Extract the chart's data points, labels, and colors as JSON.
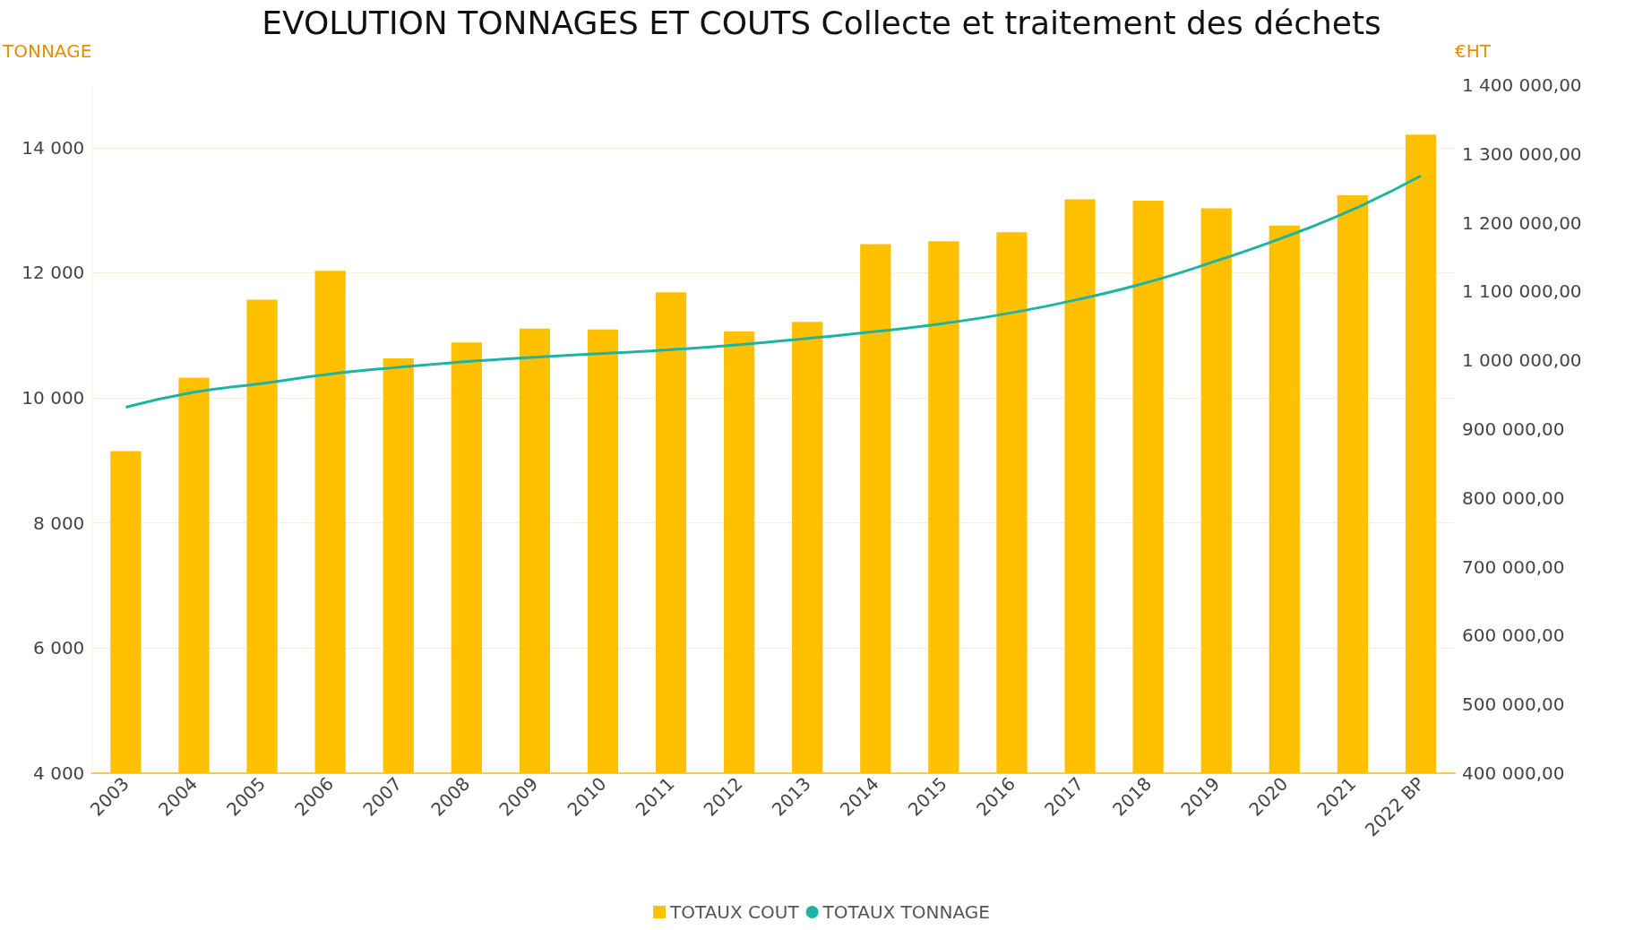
{
  "chart_data": {
    "type": "bar",
    "title": "EVOLUTION TONNAGES ET COUTS Collecte et traitement des déchets",
    "ylabel": "TONNAGE",
    "y2label": "€HT",
    "categories": [
      "2003",
      "2004",
      "2005",
      "2006",
      "2007",
      "2008",
      "2009",
      "2010",
      "2011",
      "2012",
      "2013",
      "2014",
      "2015",
      "2016",
      "2017",
      "2018",
      "2019",
      "2020",
      "2021",
      "2022 BP"
    ],
    "series": [
      {
        "name": "TOTAUX COUT",
        "axis": "y2",
        "color": "#ffc000",
        "values": [
          868000,
          975000,
          1088000,
          1130000,
          1003000,
          1026000,
          1046000,
          1045000,
          1099000,
          1042000,
          1056000,
          1169000,
          1173000,
          1186000,
          1234000,
          1232000,
          1221000,
          1196000,
          1240000,
          1328000
        ]
      },
      {
        "name": "TOTAUX TONNAGE",
        "type": "line",
        "color": "#1fb3a3",
        "values": [
          9850,
          10090,
          10230,
          10380,
          10490,
          10580,
          10650,
          10710,
          10770,
          10850,
          10950,
          11060,
          11190,
          11360,
          11580,
          11850,
          12190,
          12570,
          13010,
          13550
        ]
      }
    ],
    "ylim": [
      4000,
      15000
    ],
    "yticks": [
      {
        "value": 4000,
        "label": "4 000"
      },
      {
        "value": 6000,
        "label": "6 000"
      },
      {
        "value": 8000,
        "label": "8 000"
      },
      {
        "value": 10000,
        "label": "10 000"
      },
      {
        "value": 12000,
        "label": "12 000"
      },
      {
        "value": 14000,
        "label": "14 000"
      }
    ],
    "y2lim": [
      400000,
      1400000
    ],
    "y2ticks": [
      {
        "value": 400000,
        "label": "400 000,00"
      },
      {
        "value": 500000,
        "label": "500 000,00"
      },
      {
        "value": 600000,
        "label": "600 000,00"
      },
      {
        "value": 700000,
        "label": "700 000,00"
      },
      {
        "value": 800000,
        "label": "800 000,00"
      },
      {
        "value": 900000,
        "label": "900 000,00"
      },
      {
        "value": 1000000,
        "label": "1 000 000,00"
      },
      {
        "value": 1100000,
        "label": "1 100 000,00"
      },
      {
        "value": 1200000,
        "label": "1 200 000,00"
      },
      {
        "value": 1300000,
        "label": "1 300 000,00"
      },
      {
        "value": 1400000,
        "label": "1 400 000,00"
      }
    ],
    "grid": "y",
    "legend": "bottom",
    "marker": "none"
  }
}
